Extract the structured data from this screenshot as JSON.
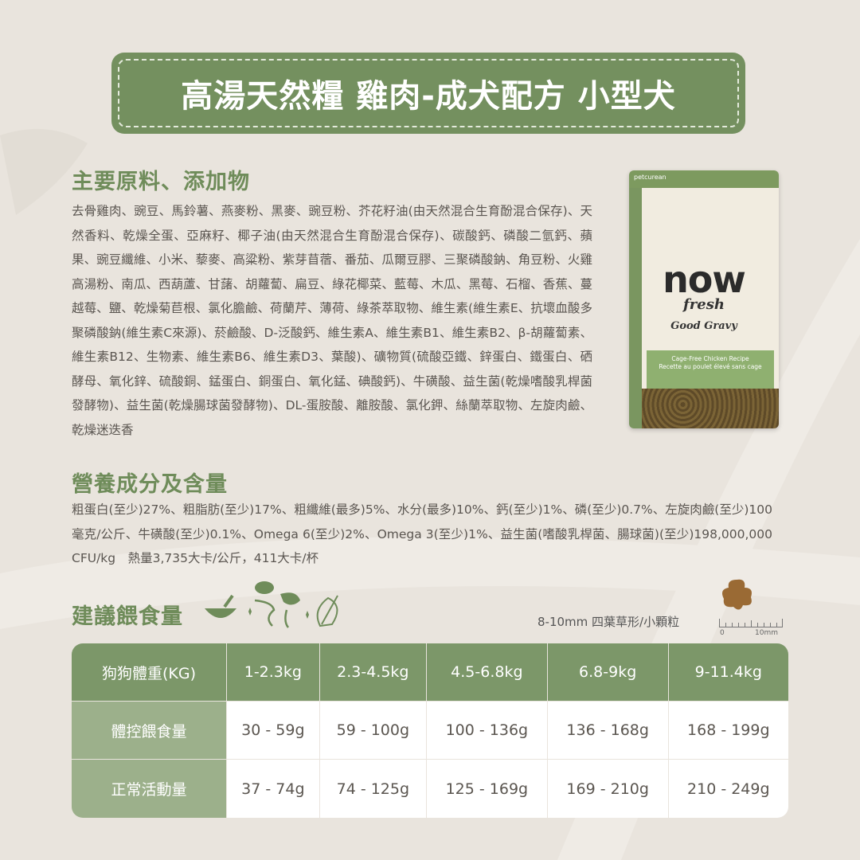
{
  "title": "高湯天然糧 雞肉-成犬配方 小型犬",
  "ingredients": {
    "heading": "主要原料、添加物",
    "text": "去骨雞肉、豌豆、馬鈴薯、燕麥粉、黑麥、豌豆粉、芥花籽油(由天然混合生育酚混合保存)、天然香料、乾燥全蛋、亞麻籽、椰子油(由天然混合生育酚混合保存)、碳酸鈣、磷酸二氫鈣、蘋果、豌豆纖維、小米、藜麥、高粱粉、紫芽苜蓿、番茄、瓜爾豆膠、三聚磷酸鈉、角豆粉、火雞高湯粉、南瓜、西葫蘆、甘藷、胡蘿蔔、扁豆、綠花椰菜、藍莓、木瓜、黑莓、石榴、香蕉、蔓越莓、鹽、乾燥菊苣根、氯化膽鹼、荷蘭芹、薄荷、綠茶萃取物、維生素(維生素E、抗壞血酸多聚磷酸鈉(維生素C來源)、菸鹼酸、D-泛酸鈣、維生素A、維生素B1、維生素B2、β-胡蘿蔔素、維生素B12、生物素、維生素B6、維生素D3、葉酸)、礦物質(硫酸亞鐵、鋅蛋白、鐵蛋白、硒酵母、氧化鋅、硫酸銅、錳蛋白、銅蛋白、氧化錳、碘酸鈣)、牛磺酸、益生菌(乾燥嗜酸乳桿菌發酵物)、益生菌(乾燥腸球菌發酵物)、DL-蛋胺酸、離胺酸、氯化鉀、絲蘭萃取物、左旋肉鹼、乾燥迷迭香"
  },
  "nutrition": {
    "heading": "營養成分及含量",
    "text": "粗蛋白(至少)27%、粗脂肪(至少)17%、粗纖維(最多)5%、水分(最多)10%、鈣(至少)1%、磷(至少)0.7%、左旋肉鹼(至少)100毫克/公斤、牛磺酸(至少)0.1%、Omega 6(至少)2%、Omega 3(至少)1%、益生菌(嗜酸乳桿菌、腸球菌)(至少)198,000,000 CFU/kg　熱量3,735大卡/公斤，411大卡/杯"
  },
  "product": {
    "brand_top": "petcurean",
    "logo": "now",
    "sub": "fresh",
    "line": "Good Gravy",
    "recipe": "Cage-Free Chicken Recipe",
    "recipe_fr": "Recette au poulet élevé sans cage"
  },
  "feeding": {
    "heading": "建議餵食量",
    "kibble": "8-10mm 四葉草形/小顆粒",
    "ruler_start": "0",
    "ruler_end": "10mm",
    "header": [
      "狗狗體重(KG)",
      "1-2.3kg",
      "2.3-4.5kg",
      "4.5-6.8kg",
      "6.8-9kg",
      "9-11.4kg"
    ],
    "rows": [
      {
        "label": "體控餵食量",
        "values": [
          "30 - 59g",
          "59 - 100g",
          "100 - 136g",
          "136 - 168g",
          "168 - 199g"
        ]
      },
      {
        "label": "正常活動量",
        "values": [
          "37 - 74g",
          "74 - 125g",
          "125 - 169g",
          "169 - 210g",
          "210 - 249g"
        ]
      }
    ]
  },
  "colors": {
    "green": "#74905f",
    "light_green": "#9cb08b",
    "background": "#e9e4dd"
  }
}
